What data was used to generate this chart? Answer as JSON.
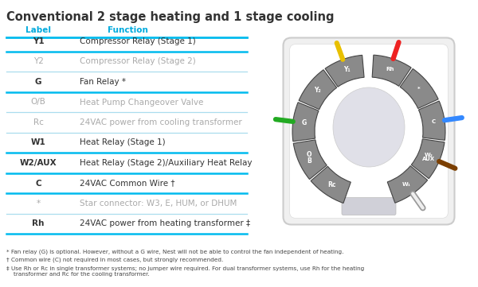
{
  "title": "Conventional 2 stage heating and 1 stage cooling",
  "title_color": "#333333",
  "title_fontsize": 10.5,
  "header_label": "Label",
  "header_function": "Function",
  "header_color": "#00aadd",
  "bg_color": "#ffffff",
  "row_sep_bold": "#00bbee",
  "row_sep_light": "#aaddee",
  "table_rows": [
    {
      "label": "Y1",
      "function": "Compressor Relay (Stage 1)",
      "bold": true,
      "gray": false
    },
    {
      "label": "Y2",
      "function": "Compressor Relay (Stage 2)",
      "bold": false,
      "gray": true
    },
    {
      "label": "G",
      "function": "Fan Relay *",
      "bold": true,
      "gray": false
    },
    {
      "label": "O/B",
      "function": "Heat Pump Changeover Valve",
      "bold": false,
      "gray": true
    },
    {
      "label": "Rc",
      "function": "24VAC power from cooling transformer",
      "bold": false,
      "gray": true
    },
    {
      "label": "W1",
      "function": "Heat Relay (Stage 1)",
      "bold": true,
      "gray": false
    },
    {
      "label": "W2/AUX",
      "function": "Heat Relay (Stage 2)/Auxiliary Heat Relay",
      "bold": true,
      "gray": false
    },
    {
      "label": "C",
      "function": "24VAC Common Wire †",
      "bold": true,
      "gray": false
    },
    {
      "label": "*",
      "function": "Star connector: W3, E, HUM, or DHUM",
      "bold": false,
      "gray": true
    },
    {
      "label": "Rh",
      "function": "24VAC power from heating transformer ‡",
      "bold": true,
      "gray": false
    }
  ],
  "footnotes": [
    "* Fan relay (G) is optional. However, without a G wire, Nest will not be able to control the fan independent of heating.",
    "† Common wire (C) not required in most cases, but strongly recommended.",
    "‡ Use Rh or Rc in single transformer systems; no jumper wire required. For dual transformer systems, use Rh for the heating\n    transformer and Rc for the cooling transformer."
  ],
  "left_connectors": [
    {
      "label": "Y₁",
      "wire_color": "#e8c000"
    },
    {
      "label": "Y₂",
      "wire_color": null
    },
    {
      "label": "G",
      "wire_color": "#22aa22"
    },
    {
      "label": "O\nB",
      "wire_color": null
    },
    {
      "label": "Rc",
      "wire_color": null
    }
  ],
  "right_connectors": [
    {
      "label": "W₁",
      "wire_color": "#cccccc"
    },
    {
      "label": "W₂\nAUX",
      "wire_color": "#7B3F00"
    },
    {
      "label": "C",
      "wire_color": "#3388ff"
    },
    {
      "label": "*",
      "wire_color": null
    },
    {
      "label": "Rh",
      "wire_color": "#ee2222"
    }
  ]
}
